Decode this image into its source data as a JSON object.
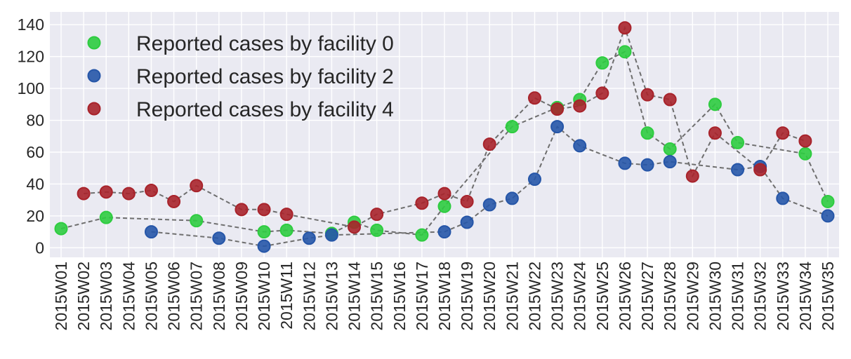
{
  "chart_data": {
    "type": "scatter",
    "categories": [
      "2015W01",
      "2015W02",
      "2015W03",
      "2015W04",
      "2015W05",
      "2015W06",
      "2015W07",
      "2015W08",
      "2015W09",
      "2015W10",
      "2015W11",
      "2015W12",
      "2015W13",
      "2015W14",
      "2015W15",
      "2015W16",
      "2015W17",
      "2015W18",
      "2015W19",
      "2015W20",
      "2015W21",
      "2015W22",
      "2015W23",
      "2015W24",
      "2015W25",
      "2015W26",
      "2015W27",
      "2015W28",
      "2015W29",
      "2015W30",
      "2015W31",
      "2015W32",
      "2015W33",
      "2015W34",
      "2015W35"
    ],
    "ylim": [
      -6,
      148
    ],
    "yticks": [
      0,
      20,
      40,
      60,
      80,
      100,
      120,
      140
    ],
    "grid": true,
    "legend_position": "top-left",
    "series": [
      {
        "name": "Reported cases by facility 0",
        "color": "#2ecc40",
        "values": [
          12,
          null,
          19,
          null,
          null,
          null,
          17,
          null,
          null,
          10,
          11,
          null,
          9,
          16,
          11,
          null,
          8,
          26,
          null,
          null,
          76,
          null,
          88,
          93,
          116,
          123,
          72,
          62,
          null,
          90,
          66,
          null,
          null,
          59,
          29
        ]
      },
      {
        "name": "Reported cases by facility 2",
        "color": "#2656a8",
        "values": [
          null,
          null,
          null,
          null,
          10,
          null,
          null,
          6,
          null,
          1,
          null,
          6,
          8,
          null,
          null,
          null,
          null,
          10,
          16,
          27,
          31,
          43,
          76,
          64,
          null,
          53,
          52,
          54,
          null,
          null,
          49,
          51,
          31,
          null,
          20
        ]
      },
      {
        "name": "Reported cases by facility 4",
        "color": "#a8232b",
        "values": [
          null,
          34,
          35,
          34,
          36,
          29,
          39,
          null,
          24,
          24,
          21,
          null,
          null,
          13,
          21,
          null,
          28,
          34,
          29,
          65,
          null,
          94,
          87,
          89,
          97,
          138,
          96,
          93,
          45,
          72,
          null,
          49,
          72,
          67,
          null
        ]
      }
    ]
  }
}
